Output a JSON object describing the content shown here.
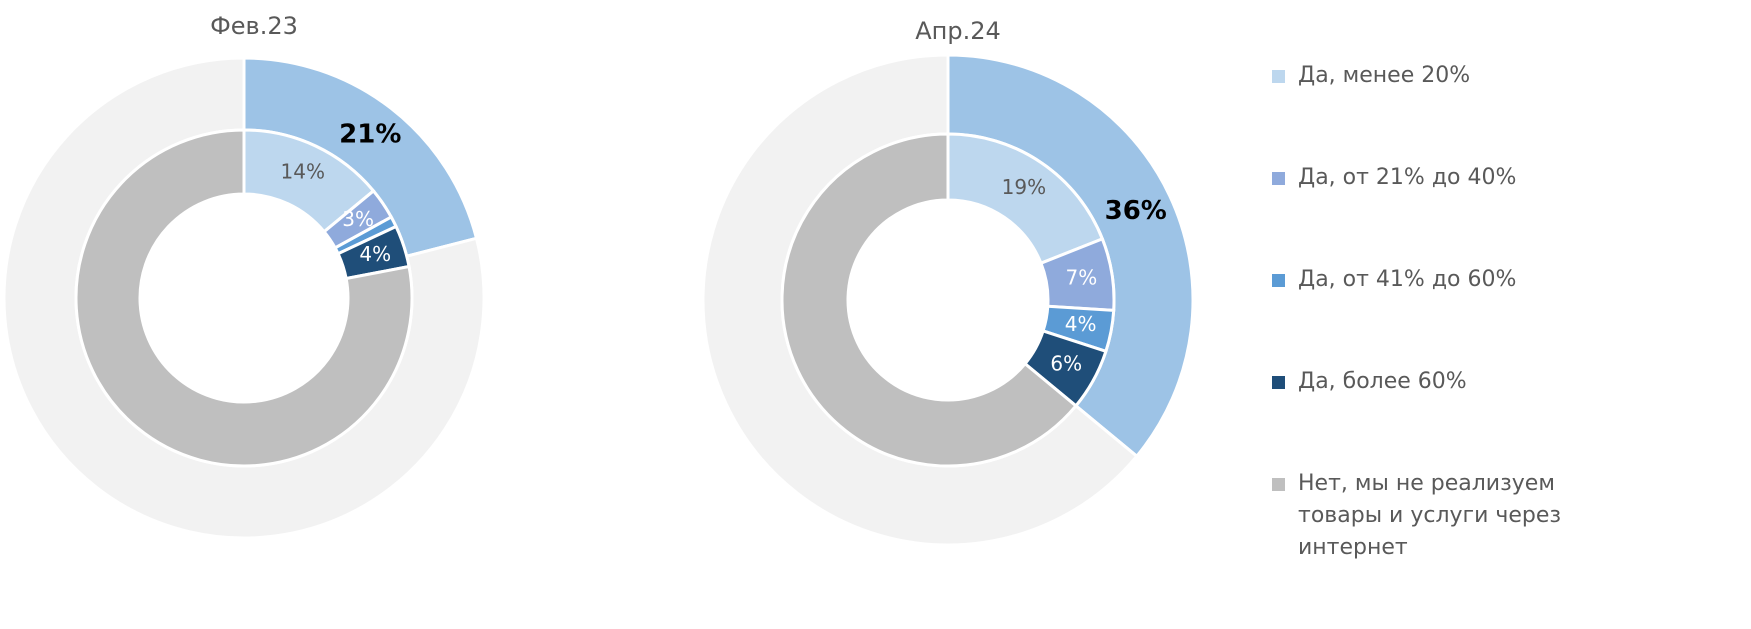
{
  "chart_data": [
    {
      "type": "donut",
      "title": "Фев.23",
      "outer": {
        "values": [
          21,
          79
        ],
        "colors": [
          "#9dc3e6",
          "#f2f2f2"
        ],
        "value_labels": [
          "21%",
          null
        ]
      },
      "inner": {
        "values": [
          14,
          3,
          1,
          4,
          78
        ],
        "value_labels": [
          "14%",
          "3%",
          null,
          "4%",
          null
        ]
      }
    },
    {
      "type": "donut",
      "title": "Апр.24",
      "outer": {
        "values": [
          36,
          64
        ],
        "colors": [
          "#9dc3e6",
          "#f2f2f2"
        ],
        "value_labels": [
          "36%",
          null
        ]
      },
      "inner": {
        "values": [
          19,
          7,
          4,
          6,
          64
        ],
        "value_labels": [
          "19%",
          "7%",
          "4%",
          "6%",
          null
        ]
      }
    }
  ],
  "legend": {
    "position": "right",
    "items": [
      {
        "name": "Да, менее 20%",
        "color": "#bdd7ee"
      },
      {
        "name": "Да, от 21% до 40%",
        "color": "#8faadc"
      },
      {
        "name": "Да, от 41% до 60%",
        "color": "#5b9bd5"
      },
      {
        "name": "Да, более 60%",
        "color": "#1f4e79"
      },
      {
        "name": "Нет, мы не реализуем товары и услуги через интернет",
        "color": "#bfbfbf"
      }
    ]
  }
}
